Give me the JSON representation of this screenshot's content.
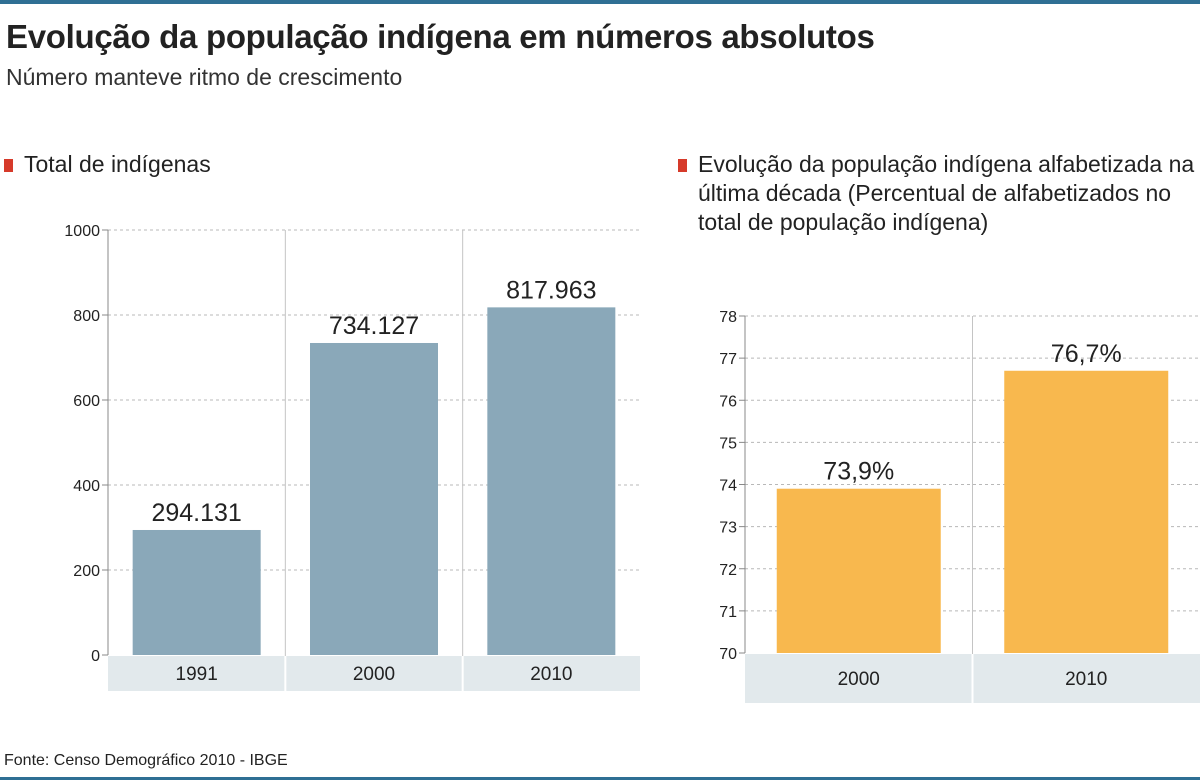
{
  "header": {
    "title": "Evolução da população indígena em números absolutos",
    "subtitle": "Número manteve ritmo de crescimento"
  },
  "colors": {
    "accent_rule": "#2f6f94",
    "marker": "#d63a2a",
    "bar_left": "#8aa8b9",
    "bar_right": "#f8b84e",
    "axis_band": "#e2e9ec",
    "grid": "#b8b8b8"
  },
  "chart_data": [
    {
      "type": "bar",
      "title": "Total de indígenas",
      "categories": [
        "1991",
        "2000",
        "2010"
      ],
      "values": [
        294.131,
        734.127,
        817.963
      ],
      "value_labels": [
        "294.131",
        "734.127",
        "817.963"
      ],
      "ylim": [
        0,
        1000
      ],
      "yticks": [
        "0",
        "200",
        "400",
        "600",
        "800",
        "1000"
      ],
      "ytick_values": [
        0,
        200,
        400,
        600,
        800,
        1000
      ],
      "grid": true
    },
    {
      "type": "bar",
      "title": "Evolução da população indígena alfabetizada na última década (Percentual de alfabetizados no total de população indígena)",
      "categories": [
        "2000",
        "2010"
      ],
      "values": [
        73.9,
        76.7
      ],
      "value_labels": [
        "73,9%",
        "76,7%"
      ],
      "ylim": [
        70,
        78
      ],
      "yticks": [
        "70",
        "71",
        "72",
        "73",
        "74",
        "75",
        "76",
        "77",
        "78"
      ],
      "ytick_values": [
        70,
        71,
        72,
        73,
        74,
        75,
        76,
        77,
        78
      ],
      "grid": true
    }
  ],
  "footer": {
    "source": "Fonte: Censo Demográfico 2010 - IBGE"
  }
}
